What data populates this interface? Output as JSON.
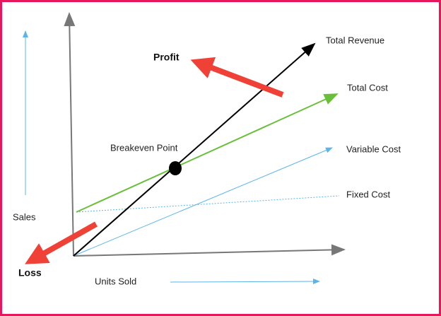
{
  "labels": {
    "sales": "Sales",
    "units_sold": "Units Sold",
    "profit": "Profit",
    "loss": "Loss",
    "breakeven_point": "Breakeven Point",
    "total_revenue": "Total Revenue",
    "total_cost": "Total Cost",
    "variable_cost": "Variable Cost",
    "fixed_cost": "Fixed Cost"
  }
}
